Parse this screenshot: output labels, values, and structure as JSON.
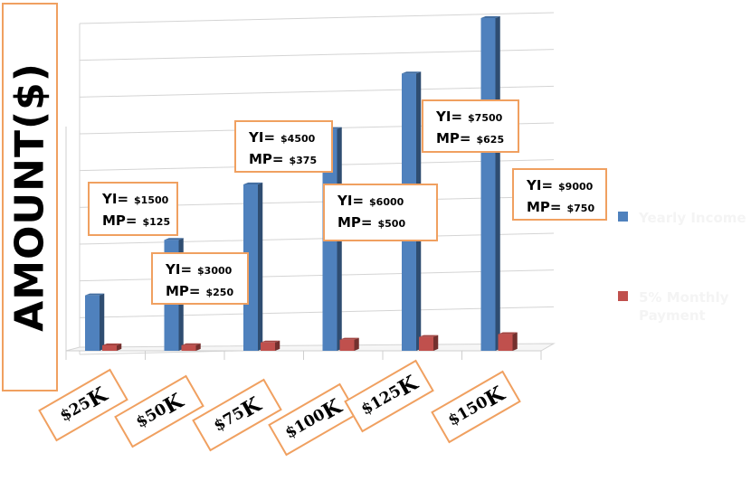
{
  "chart_data": {
    "type": "bar",
    "ylabel": "AMOUNT($)",
    "categories": [
      "$25K",
      "$50K",
      "$75K",
      "$100K",
      "$125K",
      "$150K"
    ],
    "series": [
      {
        "name": "Yearly Income",
        "color": "#4f81bd",
        "values": [
          25000,
          50000,
          75000,
          100000,
          125000,
          150000
        ]
      },
      {
        "name": "5% Monthly Payment",
        "color": "#c0504d",
        "values": [
          1250,
          2500,
          3750,
          5000,
          6250,
          7500
        ]
      }
    ],
    "ylim": [
      0,
      150000
    ],
    "grid": true,
    "legend_position": "right",
    "annotations": [
      {
        "yi_label": "YI=",
        "yi": "$1500",
        "mp_label": "MP=",
        "mp": "$125"
      },
      {
        "yi_label": "YI=",
        "yi": "$3000",
        "mp_label": "MP=",
        "mp": "$250"
      },
      {
        "yi_label": "YI=",
        "yi": "$4500",
        "mp_label": "MP=",
        "mp": "$375"
      },
      {
        "yi_label": "YI=",
        "yi": "$6000",
        "mp_label": "MP=",
        "mp": "$500"
      },
      {
        "yi_label": "YI=",
        "yi": "$7500",
        "mp_label": "MP=",
        "mp": "$625"
      },
      {
        "yi_label": "YI=",
        "yi": "$9000",
        "mp_label": "MP=",
        "mp": "$750"
      }
    ],
    "category_labels": [
      {
        "prefix": "$25",
        "suffix": "K"
      },
      {
        "prefix": "$50",
        "suffix": "K"
      },
      {
        "prefix": "$75",
        "suffix": "K"
      },
      {
        "prefix": "$100",
        "suffix": "K"
      },
      {
        "prefix": "$125",
        "suffix": "K"
      },
      {
        "prefix": "$150",
        "suffix": "K"
      }
    ]
  }
}
